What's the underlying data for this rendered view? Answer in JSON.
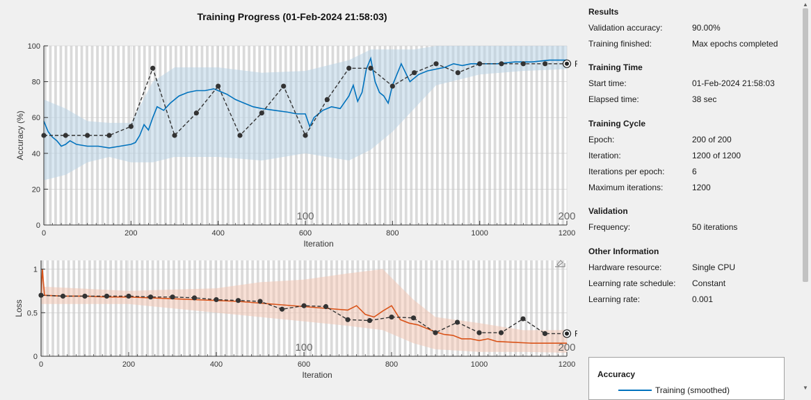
{
  "title": "Training Progress (01-Feb-2024 21:58:03)",
  "colors": {
    "accuracy": "#0072bd",
    "accuracy_raw": "#b9d4e6",
    "loss": "#d95319",
    "loss_raw": "#f2c7b4",
    "validation": "#333333",
    "epoch_band": "#dadada"
  },
  "chart_data": [
    {
      "type": "line",
      "name": "accuracy",
      "xlabel": "Iteration",
      "ylabel": "Accuracy (%)",
      "xlim": [
        0,
        1200
      ],
      "ylim": [
        0,
        100
      ],
      "xticks": [
        0,
        200,
        400,
        600,
        800,
        1000,
        1200
      ],
      "yticks": [
        0,
        20,
        40,
        60,
        80,
        100
      ],
      "grid": true,
      "epoch_labels": [
        {
          "x": 600,
          "text": "100"
        },
        {
          "x": 1200,
          "text": "200"
        }
      ],
      "final_label": "Final",
      "training_smoothed": [
        [
          0,
          58
        ],
        [
          10,
          52
        ],
        [
          20,
          49
        ],
        [
          30,
          47
        ],
        [
          40,
          44
        ],
        [
          50,
          45
        ],
        [
          60,
          47
        ],
        [
          75,
          45
        ],
        [
          100,
          44
        ],
        [
          125,
          44
        ],
        [
          150,
          43
        ],
        [
          175,
          44
        ],
        [
          200,
          45
        ],
        [
          210,
          46
        ],
        [
          220,
          50
        ],
        [
          230,
          56
        ],
        [
          240,
          53
        ],
        [
          250,
          60
        ],
        [
          260,
          66
        ],
        [
          275,
          64
        ],
        [
          290,
          68
        ],
        [
          310,
          72
        ],
        [
          330,
          74
        ],
        [
          350,
          75
        ],
        [
          370,
          75
        ],
        [
          390,
          76
        ],
        [
          400,
          75
        ],
        [
          420,
          73
        ],
        [
          440,
          70
        ],
        [
          460,
          68
        ],
        [
          480,
          66
        ],
        [
          500,
          65
        ],
        [
          530,
          64
        ],
        [
          560,
          63
        ],
        [
          580,
          62
        ],
        [
          600,
          62
        ],
        [
          610,
          55
        ],
        [
          620,
          60
        ],
        [
          640,
          64
        ],
        [
          660,
          66
        ],
        [
          680,
          65
        ],
        [
          700,
          72
        ],
        [
          710,
          78
        ],
        [
          720,
          69
        ],
        [
          730,
          74
        ],
        [
          740,
          87
        ],
        [
          750,
          93
        ],
        [
          760,
          80
        ],
        [
          770,
          74
        ],
        [
          780,
          72
        ],
        [
          790,
          68
        ],
        [
          800,
          78
        ],
        [
          810,
          84
        ],
        [
          820,
          90
        ],
        [
          830,
          85
        ],
        [
          840,
          80
        ],
        [
          850,
          82
        ],
        [
          860,
          84
        ],
        [
          880,
          86
        ],
        [
          900,
          87
        ],
        [
          920,
          88
        ],
        [
          940,
          90
        ],
        [
          960,
          89
        ],
        [
          980,
          90
        ],
        [
          1000,
          90
        ],
        [
          1040,
          90
        ],
        [
          1080,
          91
        ],
        [
          1120,
          91
        ],
        [
          1160,
          92
        ],
        [
          1200,
          92
        ]
      ],
      "training_raw_band": [
        [
          0,
          25,
          70
        ],
        [
          50,
          28,
          65
        ],
        [
          100,
          35,
          58
        ],
        [
          150,
          38,
          57
        ],
        [
          200,
          35,
          57
        ],
        [
          250,
          35,
          80
        ],
        [
          300,
          38,
          88
        ],
        [
          400,
          38,
          88
        ],
        [
          500,
          36,
          85
        ],
        [
          600,
          40,
          86
        ],
        [
          700,
          36,
          92
        ],
        [
          750,
          42,
          98
        ],
        [
          800,
          52,
          98
        ],
        [
          850,
          65,
          98
        ],
        [
          900,
          78,
          100
        ],
        [
          1000,
          84,
          100
        ],
        [
          1100,
          86,
          100
        ],
        [
          1200,
          87,
          100
        ]
      ],
      "validation": [
        [
          0,
          50
        ],
        [
          50,
          50
        ],
        [
          100,
          50
        ],
        [
          150,
          50
        ],
        [
          200,
          55
        ],
        [
          250,
          87.5
        ],
        [
          300,
          50
        ],
        [
          350,
          62.5
        ],
        [
          400,
          77.5
        ],
        [
          450,
          50
        ],
        [
          500,
          62.5
        ],
        [
          550,
          77.5
        ],
        [
          600,
          50
        ],
        [
          650,
          70
        ],
        [
          700,
          87.5
        ],
        [
          750,
          87.5
        ],
        [
          800,
          77.5
        ],
        [
          850,
          85
        ],
        [
          900,
          90
        ],
        [
          950,
          85
        ],
        [
          1000,
          90
        ],
        [
          1050,
          90
        ],
        [
          1100,
          90
        ],
        [
          1150,
          90
        ],
        [
          1200,
          90
        ]
      ]
    },
    {
      "type": "line",
      "name": "loss",
      "xlabel": "Iteration",
      "ylabel": "Loss",
      "xlim": [
        0,
        1200
      ],
      "ylim": [
        0,
        1.1
      ],
      "xticks": [
        0,
        200,
        400,
        600,
        800,
        1000,
        1200
      ],
      "yticks": [
        0,
        0.5,
        1
      ],
      "grid": true,
      "epoch_labels": [
        {
          "x": 600,
          "text": "100"
        },
        {
          "x": 1200,
          "text": "200"
        }
      ],
      "final_label": "Final",
      "training_smoothed": [
        [
          0,
          0.7
        ],
        [
          3,
          1.0
        ],
        [
          8,
          0.7
        ],
        [
          50,
          0.69
        ],
        [
          100,
          0.69
        ],
        [
          150,
          0.68
        ],
        [
          200,
          0.68
        ],
        [
          250,
          0.67
        ],
        [
          300,
          0.66
        ],
        [
          350,
          0.65
        ],
        [
          400,
          0.64
        ],
        [
          450,
          0.63
        ],
        [
          500,
          0.61
        ],
        [
          550,
          0.59
        ],
        [
          600,
          0.57
        ],
        [
          650,
          0.55
        ],
        [
          700,
          0.53
        ],
        [
          720,
          0.58
        ],
        [
          740,
          0.48
        ],
        [
          760,
          0.45
        ],
        [
          780,
          0.52
        ],
        [
          800,
          0.58
        ],
        [
          820,
          0.42
        ],
        [
          840,
          0.38
        ],
        [
          860,
          0.36
        ],
        [
          880,
          0.32
        ],
        [
          900,
          0.28
        ],
        [
          920,
          0.25
        ],
        [
          940,
          0.24
        ],
        [
          960,
          0.2
        ],
        [
          980,
          0.2
        ],
        [
          1000,
          0.18
        ],
        [
          1020,
          0.2
        ],
        [
          1040,
          0.17
        ],
        [
          1080,
          0.16
        ],
        [
          1120,
          0.15
        ],
        [
          1160,
          0.15
        ],
        [
          1200,
          0.15
        ]
      ],
      "training_raw_band": [
        [
          0,
          0.6,
          0.8
        ],
        [
          200,
          0.6,
          0.75
        ],
        [
          400,
          0.5,
          0.78
        ],
        [
          500,
          0.45,
          0.85
        ],
        [
          600,
          0.4,
          0.88
        ],
        [
          700,
          0.35,
          0.95
        ],
        [
          780,
          0.3,
          1.0
        ],
        [
          850,
          0.15,
          0.65
        ],
        [
          900,
          0.08,
          0.45
        ],
        [
          1000,
          0.05,
          0.38
        ],
        [
          1100,
          0.05,
          0.3
        ],
        [
          1200,
          0.04,
          0.3
        ]
      ],
      "validation": [
        [
          0,
          0.7
        ],
        [
          50,
          0.69
        ],
        [
          100,
          0.69
        ],
        [
          150,
          0.69
        ],
        [
          200,
          0.69
        ],
        [
          250,
          0.68
        ],
        [
          300,
          0.68
        ],
        [
          350,
          0.67
        ],
        [
          400,
          0.65
        ],
        [
          450,
          0.64
        ],
        [
          500,
          0.63
        ],
        [
          550,
          0.54
        ],
        [
          600,
          0.58
        ],
        [
          650,
          0.57
        ],
        [
          700,
          0.42
        ],
        [
          750,
          0.41
        ],
        [
          800,
          0.45
        ],
        [
          850,
          0.44
        ],
        [
          900,
          0.27
        ],
        [
          950,
          0.39
        ],
        [
          1000,
          0.27
        ],
        [
          1050,
          0.27
        ],
        [
          1100,
          0.43
        ],
        [
          1150,
          0.26
        ],
        [
          1200,
          0.26
        ]
      ]
    }
  ],
  "info": {
    "results": {
      "title": "Results",
      "rows": [
        {
          "label": "Validation accuracy:",
          "value": "90.00%"
        },
        {
          "label": "Training finished:",
          "value": "Max epochs completed"
        }
      ]
    },
    "training_time": {
      "title": "Training Time",
      "rows": [
        {
          "label": "Start time:",
          "value": "01-Feb-2024 21:58:03"
        },
        {
          "label": "Elapsed time:",
          "value": "38 sec"
        }
      ]
    },
    "training_cycle": {
      "title": "Training Cycle",
      "rows": [
        {
          "label": "Epoch:",
          "value": "200 of 200"
        },
        {
          "label": "Iteration:",
          "value": "1200 of 1200"
        },
        {
          "label": "Iterations per epoch:",
          "value": "6"
        },
        {
          "label": "Maximum iterations:",
          "value": "1200"
        }
      ]
    },
    "validation": {
      "title": "Validation",
      "rows": [
        {
          "label": "Frequency:",
          "value": "50 iterations"
        }
      ]
    },
    "other": {
      "title": "Other Information",
      "rows": [
        {
          "label": "Hardware resource:",
          "value": "Single CPU"
        },
        {
          "label": "Learning rate schedule:",
          "value": "Constant"
        },
        {
          "label": "Learning rate:",
          "value": "0.001"
        }
      ]
    }
  },
  "legend": {
    "title": "Accuracy",
    "items": [
      {
        "label": "Training (smoothed)",
        "color": "#0072bd"
      }
    ]
  },
  "icons": {
    "export": "export-icon",
    "scroll_up": "scroll-up-arrow-icon",
    "scroll_down": "scroll-down-arrow-icon"
  }
}
